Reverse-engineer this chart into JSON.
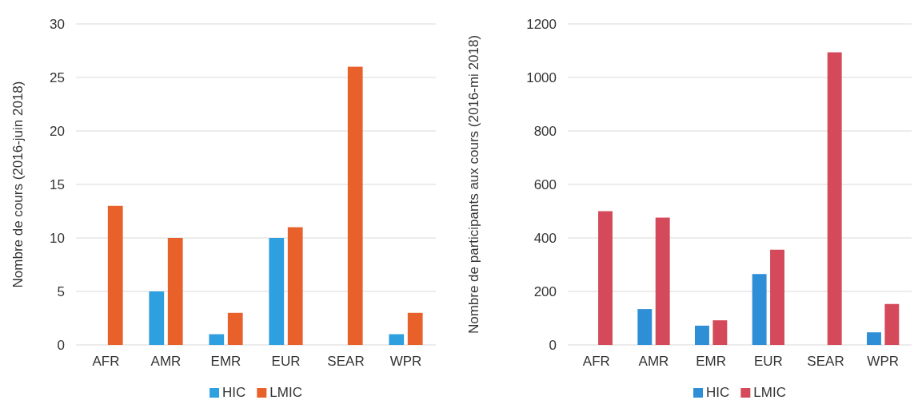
{
  "chart_data": [
    {
      "type": "bar",
      "ylabel": "Nombre de cours (2016-juin 2018)",
      "categories": [
        "AFR",
        "AMR",
        "EMR",
        "EUR",
        "SEAR",
        "WPR"
      ],
      "series": [
        {
          "name": "HIC",
          "color": "#2e9fdf",
          "values": [
            0,
            5,
            1,
            10,
            0,
            1
          ]
        },
        {
          "name": "LMIC",
          "color": "#e8602a",
          "values": [
            13,
            10,
            3,
            11,
            26,
            3
          ]
        }
      ],
      "ylim": [
        0,
        30
      ],
      "yticks": [
        0,
        5,
        10,
        15,
        20,
        25,
        30
      ],
      "grid": "y",
      "legend": "bottom"
    },
    {
      "type": "bar",
      "ylabel": "Nombre de participants aux cours (2016-mi 2018)",
      "categories": [
        "AFR",
        "AMR",
        "EMR",
        "EUR",
        "SEAR",
        "WPR"
      ],
      "series": [
        {
          "name": "HIC",
          "color": "#2e8fd6",
          "values": [
            0,
            134,
            72,
            265,
            0,
            47
          ]
        },
        {
          "name": "LMIC",
          "color": "#d44a5a",
          "values": [
            500,
            476,
            92,
            356,
            1094,
            153
          ]
        }
      ],
      "ylim": [
        0,
        1200
      ],
      "yticks": [
        0,
        200,
        400,
        600,
        800,
        1000,
        1200
      ],
      "grid": "y",
      "legend": "bottom"
    }
  ]
}
